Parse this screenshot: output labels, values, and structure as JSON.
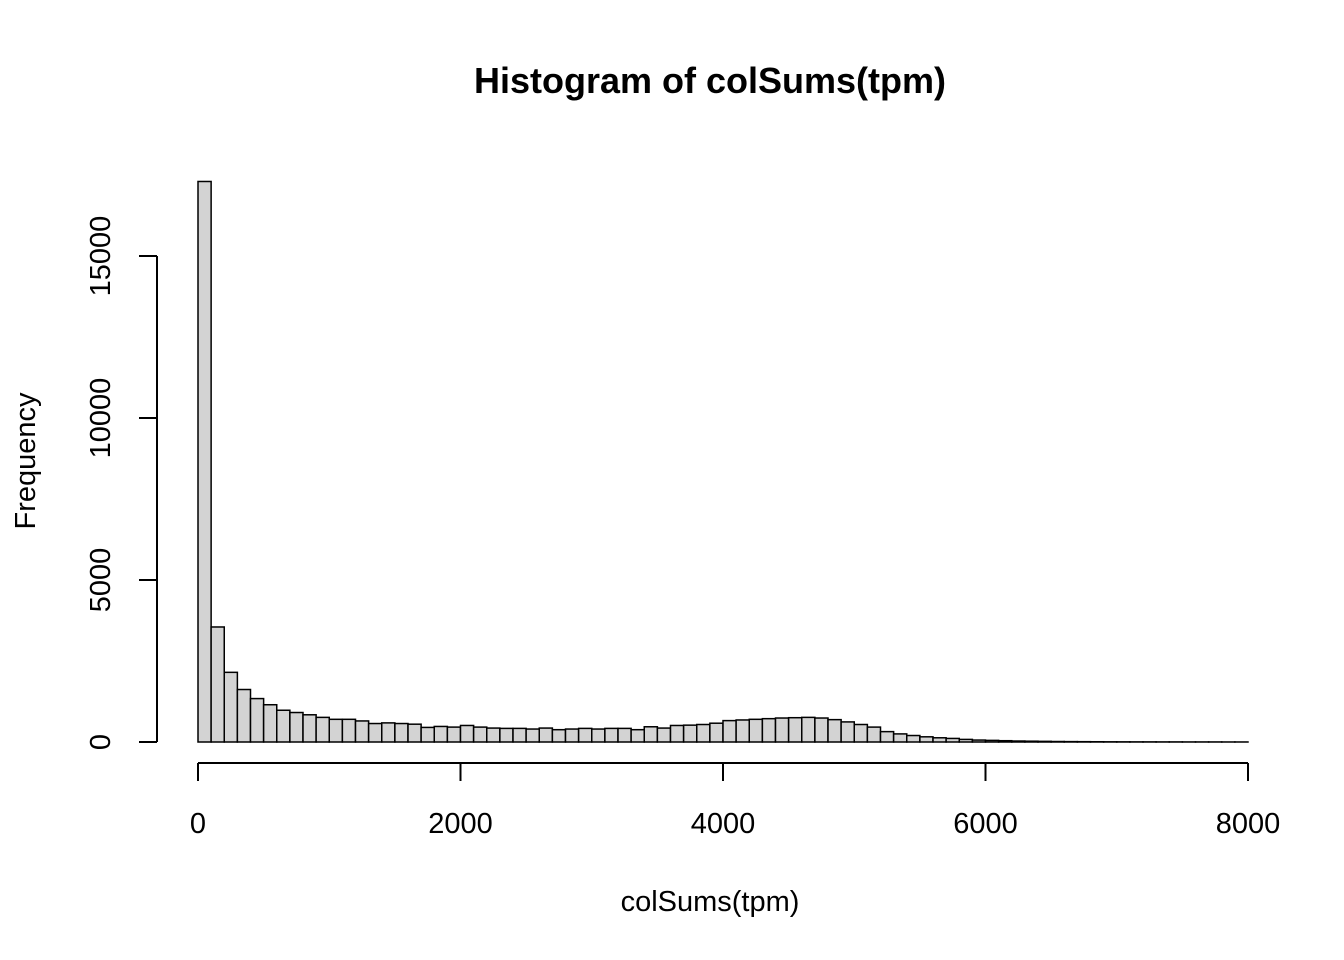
{
  "chart_data": {
    "type": "bar",
    "title": "Histogram of colSums(tpm)",
    "xlabel": "colSums(tpm)",
    "ylabel": "Frequency",
    "xlim": [
      0,
      8000
    ],
    "ylim": [
      0,
      17300
    ],
    "x_ticks": [
      "0",
      "2000",
      "4000",
      "6000",
      "8000"
    ],
    "y_ticks": [
      "0",
      "5000",
      "10000",
      "15000"
    ],
    "bin_width": 100,
    "bin_start": 0,
    "values": [
      17300,
      3550,
      2150,
      1620,
      1340,
      1150,
      980,
      910,
      840,
      760,
      700,
      700,
      650,
      570,
      590,
      570,
      550,
      450,
      480,
      460,
      510,
      460,
      430,
      420,
      420,
      400,
      430,
      380,
      400,
      420,
      400,
      420,
      420,
      380,
      470,
      430,
      510,
      520,
      540,
      580,
      660,
      680,
      700,
      720,
      740,
      750,
      760,
      740,
      690,
      620,
      540,
      460,
      320,
      250,
      200,
      160,
      130,
      110,
      80,
      60,
      50,
      40,
      30,
      25,
      20,
      15,
      12,
      10,
      8,
      6,
      5,
      4,
      4,
      3,
      3,
      2,
      2,
      2,
      1,
      1
    ]
  }
}
